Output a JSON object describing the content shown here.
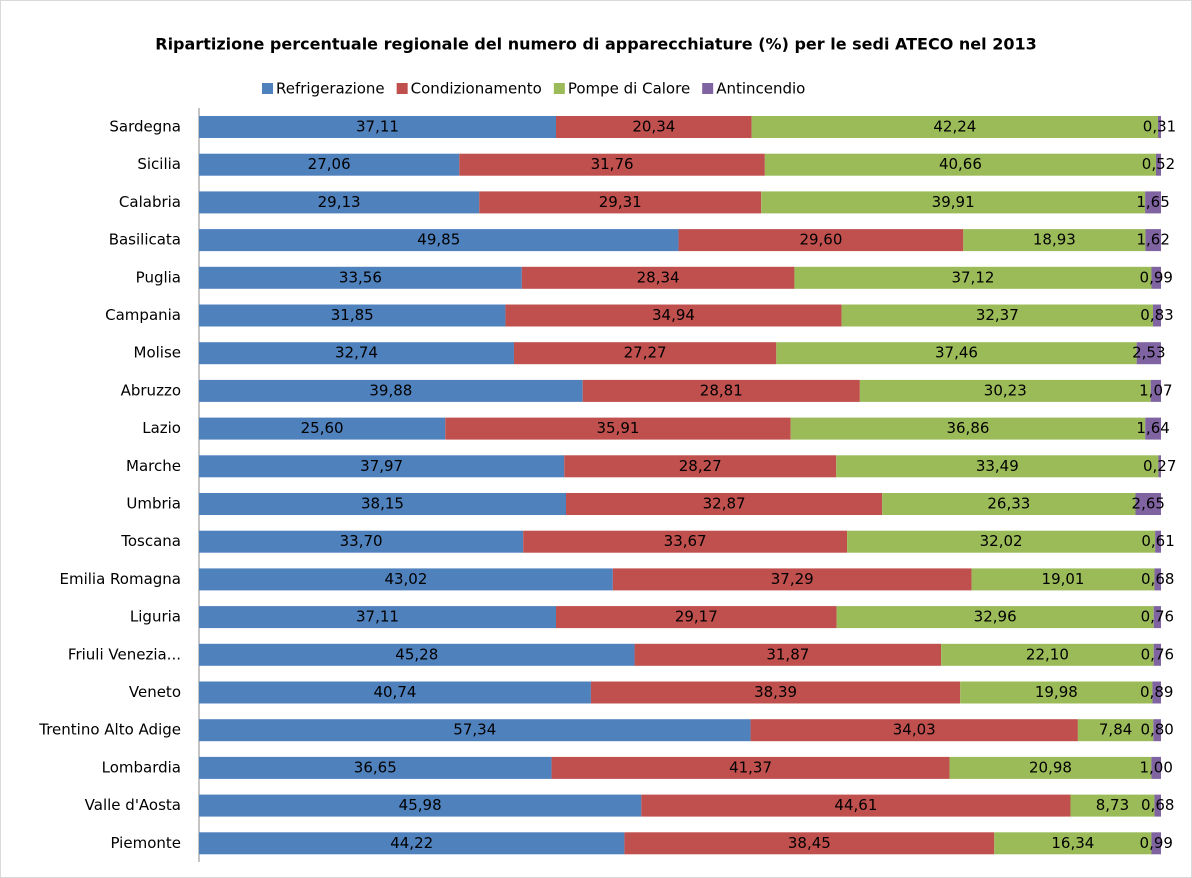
{
  "chart_data": {
    "type": "stacked_bar_horizontal",
    "title": "Ripartizione percentuale regionale del numero di apparecchiature (%) per le sedi ATECO nel 2013",
    "categories": [
      "Sardegna",
      "Sicilia",
      "Calabria",
      "Basilicata",
      "Puglia",
      "Campania",
      "Molise",
      "Abruzzo",
      "Lazio",
      "Marche",
      "Umbria",
      "Toscana",
      "Emilia Romagna",
      "Liguria",
      "Friuli Venezia...",
      "Veneto",
      "Trentino Alto Adige",
      "Lombardia",
      "Valle d'Aosta",
      "Piemonte"
    ],
    "series": [
      {
        "name": "Refrigerazione",
        "color": "#4f81bd",
        "values": [
          37.11,
          27.06,
          29.13,
          49.85,
          33.56,
          31.85,
          32.74,
          39.88,
          25.6,
          37.97,
          38.15,
          33.7,
          43.02,
          37.11,
          45.28,
          40.74,
          57.34,
          36.65,
          45.98,
          44.22
        ],
        "value_labels": [
          "37,11",
          "27,06",
          "29,13",
          "49,85",
          "33,56",
          "31,85",
          "32,74",
          "39,88",
          "25,60",
          "37,97",
          "38,15",
          "33,70",
          "43,02",
          "37,11",
          "45,28",
          "40,74",
          "57,34",
          "36,65",
          "45,98",
          "44,22"
        ]
      },
      {
        "name": "Condizionamento",
        "color": "#c0504d",
        "values": [
          20.34,
          31.76,
          29.31,
          29.6,
          28.34,
          34.94,
          27.27,
          28.81,
          35.91,
          28.27,
          32.87,
          33.67,
          37.29,
          29.17,
          31.87,
          38.39,
          34.03,
          41.37,
          44.61,
          38.45
        ],
        "value_labels": [
          "20,34",
          "31,76",
          "29,31",
          "29,60",
          "28,34",
          "34,94",
          "27,27",
          "28,81",
          "35,91",
          "28,27",
          "32,87",
          "33,67",
          "37,29",
          "29,17",
          "31,87",
          "38,39",
          "34,03",
          "41,37",
          "44,61",
          "38,45"
        ]
      },
      {
        "name": "Pompe di Calore",
        "color": "#9bbb59",
        "values": [
          42.24,
          40.66,
          39.91,
          18.93,
          37.12,
          32.37,
          37.46,
          30.23,
          36.86,
          33.49,
          26.33,
          32.02,
          19.01,
          32.96,
          22.1,
          19.98,
          7.84,
          20.98,
          8.73,
          16.34
        ],
        "value_labels": [
          "42,24",
          "40,66",
          "39,91",
          "18,93",
          "37,12",
          "32,37",
          "37,46",
          "30,23",
          "36,86",
          "33,49",
          "26,33",
          "32,02",
          "19,01",
          "32,96",
          "22,10",
          "19,98",
          "7,84",
          "20,98",
          "8,73",
          "16,34"
        ]
      },
      {
        "name": "Antincendio",
        "color": "#8064a2",
        "values": [
          0.31,
          0.52,
          1.65,
          1.62,
          0.99,
          0.83,
          2.53,
          1.07,
          1.64,
          0.27,
          2.65,
          0.61,
          0.68,
          0.76,
          0.76,
          0.89,
          0.8,
          1.0,
          0.68,
          0.99
        ],
        "value_labels": [
          "0,31",
          "0,52",
          "1,65",
          "1,62",
          "0,99",
          "0,83",
          "2,53",
          "1,07",
          "1,64",
          "0,27",
          "2,65",
          "0,61",
          "0,68",
          "0,76",
          "0,76",
          "0,89",
          "0,80",
          "1,00",
          "0,68",
          "0,99"
        ]
      }
    ]
  }
}
